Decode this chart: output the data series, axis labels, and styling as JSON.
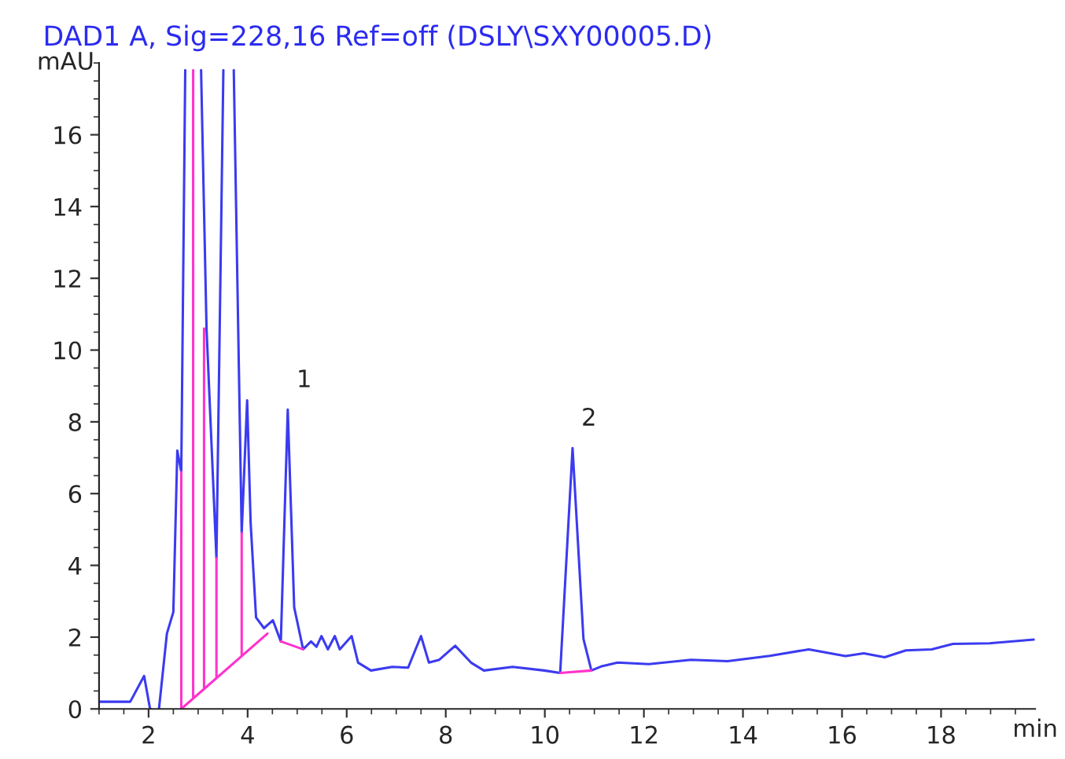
{
  "chart_data": {
    "type": "line",
    "title": "DAD1 A, Sig=228,16 Ref=off (DSLY\\SXY00005.D)",
    "xlabel": "min",
    "ylabel": "mAU",
    "xlim": [
      1,
      19.9
    ],
    "ylim": [
      0,
      18
    ],
    "xticks": [
      2,
      4,
      6,
      8,
      10,
      12,
      14,
      16,
      18
    ],
    "yticks": [
      0,
      2,
      4,
      6,
      8,
      10,
      12,
      14,
      16
    ],
    "grid": false,
    "legend": false,
    "marker": "none",
    "line_style": "solid",
    "series": [
      {
        "color": "#3b3bf0",
        "x": [
          1,
          1.63,
          1.91,
          2.03,
          2.05,
          2.2,
          2.21,
          2.37,
          2.5,
          2.58,
          2.66,
          2.74,
          2.75,
          3.05,
          3.06,
          3.17,
          3.37,
          3.51,
          3.52,
          3.71,
          3.72,
          3.88,
          3.99,
          4.06,
          4.17,
          4.33,
          4.51,
          4.67,
          4.81,
          4.94,
          5.12,
          5.28,
          5.39,
          5.49,
          5.62,
          5.76,
          5.86,
          6.1,
          6.23,
          6.49,
          6.92,
          7.24,
          7.5,
          7.66,
          7.87,
          8.19,
          8.51,
          8.77,
          9.35,
          9.99,
          10.31,
          10.56,
          10.78,
          10.94,
          11.15,
          11.47,
          12.1,
          12.95,
          13.69,
          14.54,
          15.33,
          16.07,
          16.44,
          16.86,
          17.29,
          17.81,
          18.24,
          18.98,
          19.87
        ],
        "values": [
          0.2,
          0.2,
          0.92,
          0,
          0,
          null,
          0,
          2.1,
          2.7,
          7.2,
          6.6,
          17.8,
          null,
          null,
          17.8,
          10.6,
          4.2,
          17.8,
          null,
          null,
          17.8,
          4.9,
          8.6,
          5.2,
          2.55,
          2.25,
          2.47,
          1.88,
          8.34,
          2.83,
          1.66,
          1.88,
          1.73,
          2.03,
          1.66,
          2.03,
          1.66,
          2.03,
          1.29,
          1.07,
          1.17,
          1.15,
          2.03,
          1.29,
          1.37,
          1.76,
          1.29,
          1.07,
          1.17,
          1.07,
          1.0,
          7.27,
          1.95,
          1.07,
          1.19,
          1.29,
          1.25,
          1.37,
          1.33,
          1.48,
          1.66,
          1.47,
          1.55,
          1.44,
          1.63,
          1.66,
          1.81,
          1.83,
          1.93
        ]
      },
      {
        "color": "#ff33cc",
        "x": [
          2.66,
          4.4,
          null,
          2.66,
          2.66,
          null,
          2.9,
          2.9,
          null,
          3.12,
          3.12,
          null,
          3.37,
          3.37,
          null,
          3.88,
          3.88,
          null,
          4.67,
          5.12,
          null,
          10.31,
          10.94
        ],
        "values": [
          0,
          2.1,
          null,
          0,
          6.6,
          null,
          0.29,
          17.8,
          null,
          0.56,
          10.6,
          null,
          0.86,
          4.2,
          null,
          1.47,
          4.9,
          null,
          1.88,
          1.66,
          null,
          1.0,
          1.07
        ]
      }
    ],
    "annotations": [
      {
        "text": "1",
        "x": 4.81,
        "y": 8.34
      },
      {
        "text": "2",
        "x": 10.56,
        "y": 7.27
      }
    ]
  }
}
